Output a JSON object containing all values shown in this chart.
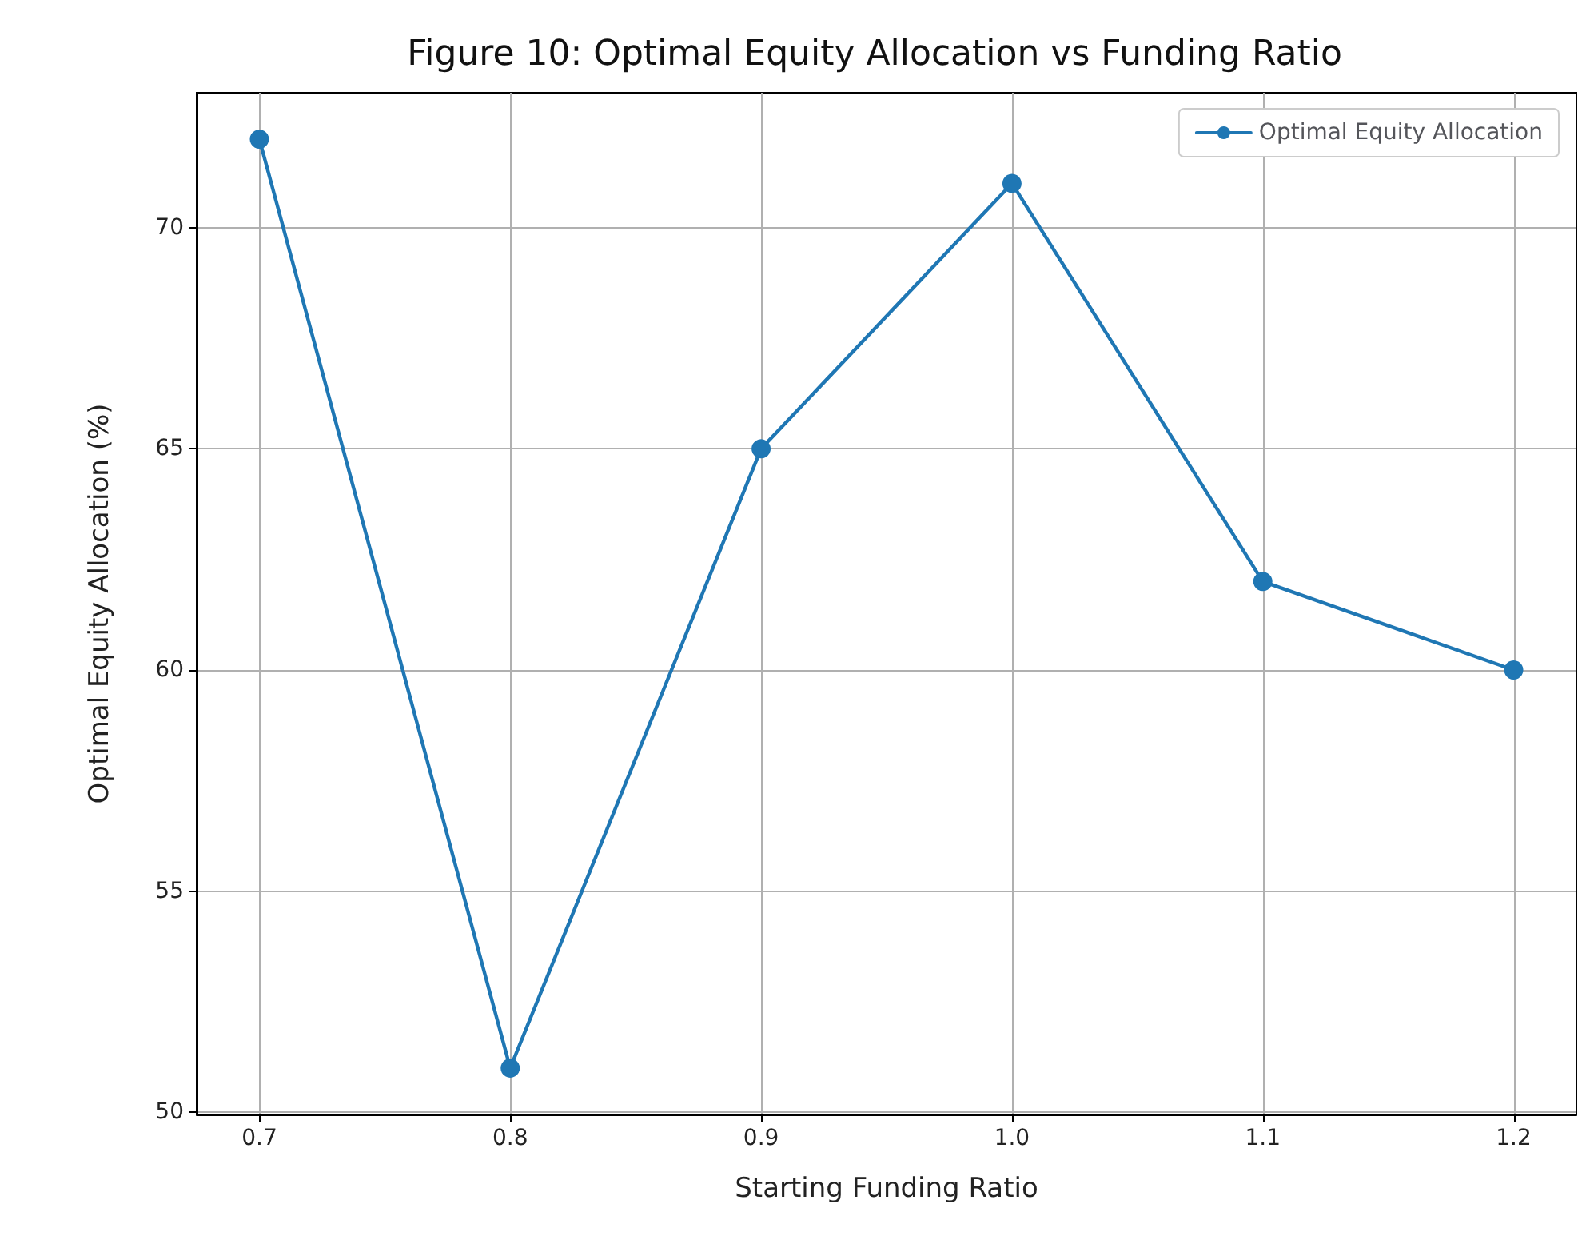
{
  "chart_data": {
    "type": "line",
    "title": "Figure 10: Optimal Equity Allocation vs Funding Ratio",
    "xlabel": "Starting Funding Ratio",
    "ylabel": "Optimal Equity Allocation (%)",
    "x": [
      0.7,
      0.8,
      0.9,
      1.0,
      1.1,
      1.2
    ],
    "series": [
      {
        "name": "Optimal Equity Allocation",
        "color": "#1f77b4",
        "values": [
          72,
          51,
          65,
          71,
          62,
          60
        ]
      }
    ],
    "xlim": [
      0.675,
      1.225
    ],
    "ylim": [
      49.95,
      73.05
    ],
    "xticks": [
      0.7,
      0.8,
      0.9,
      {
        "value": 1.0,
        "label": "1.0"
      },
      1.1,
      1.2
    ],
    "yticks": [
      50,
      55,
      60,
      65,
      70
    ],
    "grid": true,
    "legend": "top right",
    "marker": "circle",
    "line_style": "solid"
  }
}
